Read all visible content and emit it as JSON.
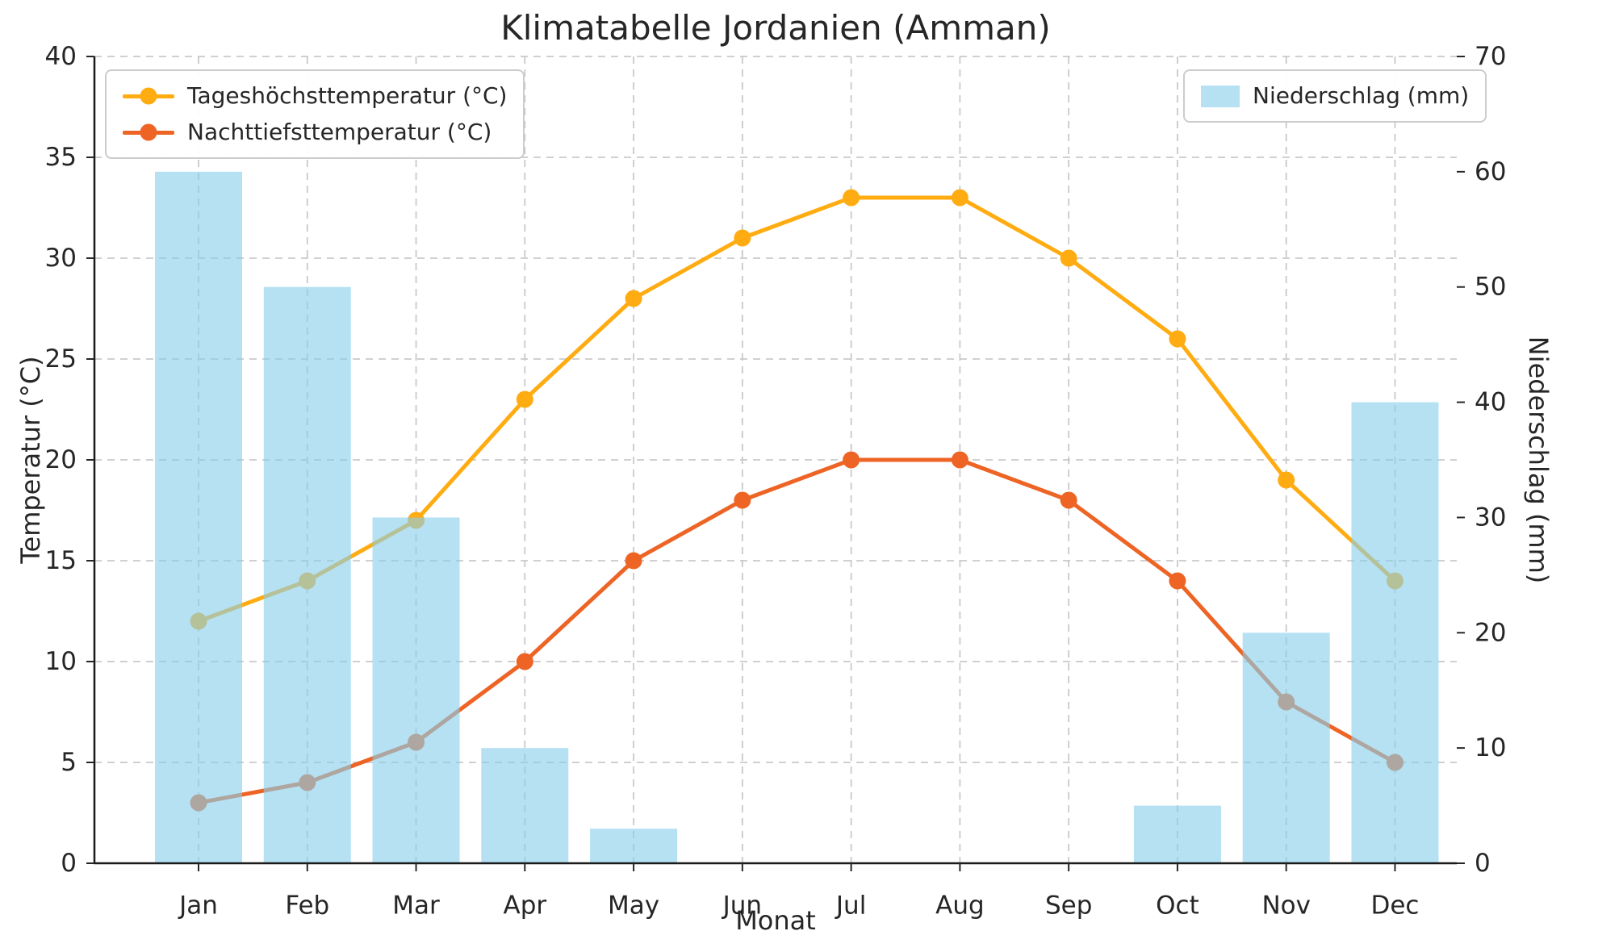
{
  "chart_data": {
    "type": "combo",
    "title": "Klimatabelle Jordanien (Amman)",
    "xlabel": "Monat",
    "ylabel_left": "Temperatur (°C)",
    "ylabel_right": "Niederschlag (mm)",
    "categories": [
      "Jan",
      "Feb",
      "Mar",
      "Apr",
      "May",
      "Jun",
      "Jul",
      "Aug",
      "Sep",
      "Oct",
      "Nov",
      "Dec"
    ],
    "y_left": {
      "min": 0,
      "max": 40,
      "ticks": [
        0,
        5,
        10,
        15,
        20,
        25,
        30,
        35,
        40
      ]
    },
    "y_right": {
      "min": 0,
      "max": 70,
      "ticks": [
        0,
        10,
        20,
        30,
        40,
        50,
        60,
        70
      ]
    },
    "grid": true,
    "legend_left_position": "upper left",
    "legend_right_position": "upper right",
    "series": [
      {
        "name": "Tageshöchsttemperatur (°C)",
        "type": "line",
        "axis": "left",
        "color": "#FFAC12",
        "values": [
          12,
          14,
          17,
          23,
          28,
          31,
          33,
          33,
          30,
          26,
          19,
          14
        ]
      },
      {
        "name": "Nachttiefsttemperatur (°C)",
        "type": "line",
        "axis": "left",
        "color": "#ED6425",
        "values": [
          3,
          4,
          6,
          10,
          15,
          18,
          20,
          20,
          18,
          14,
          8,
          5
        ]
      },
      {
        "name": "Niederschlag (mm)",
        "type": "bar",
        "axis": "right",
        "color": "#87CEEB",
        "opacity": 0.62,
        "values": [
          60,
          50,
          30,
          10,
          3,
          0,
          0,
          0,
          0,
          5,
          20,
          40
        ]
      }
    ],
    "colors": {
      "grid": "#C9C9C9",
      "text": "#262626",
      "spine": "#1A1A1A",
      "legend_border": "#CCCCCC",
      "bar_fill_rendered": "#B5E1F3"
    }
  }
}
